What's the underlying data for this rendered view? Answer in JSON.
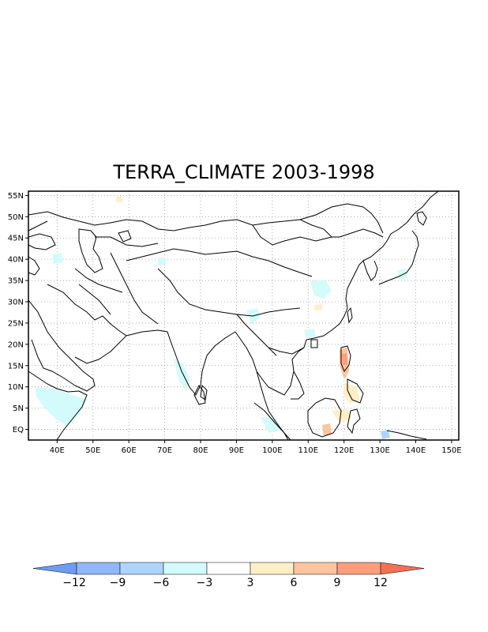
{
  "title": "TERRA_CLIMATE 2003-1998",
  "map": {
    "lon_labels": [
      "40E",
      "50E",
      "60E",
      "70E",
      "80E",
      "90E",
      "100E",
      "110E",
      "120E",
      "130E",
      "140E",
      "150E"
    ],
    "lat_labels": [
      "55N",
      "50N",
      "45N",
      "40N",
      "35N",
      "30N",
      "25N",
      "20N",
      "15N",
      "10N",
      "5N",
      "EQ"
    ],
    "grid": "dotted"
  },
  "colorbar": {
    "labels": [
      "-12",
      "-9",
      "-6",
      "-3",
      "3",
      "6",
      "9",
      "12"
    ],
    "colors": [
      "#6e9cf5",
      "#8fb7fa",
      "#afd4fb",
      "#d4fbfb",
      "#ffffff",
      "#ffefc6",
      "#fcc59e",
      "#fb9e7c",
      "#f27054"
    ]
  }
}
